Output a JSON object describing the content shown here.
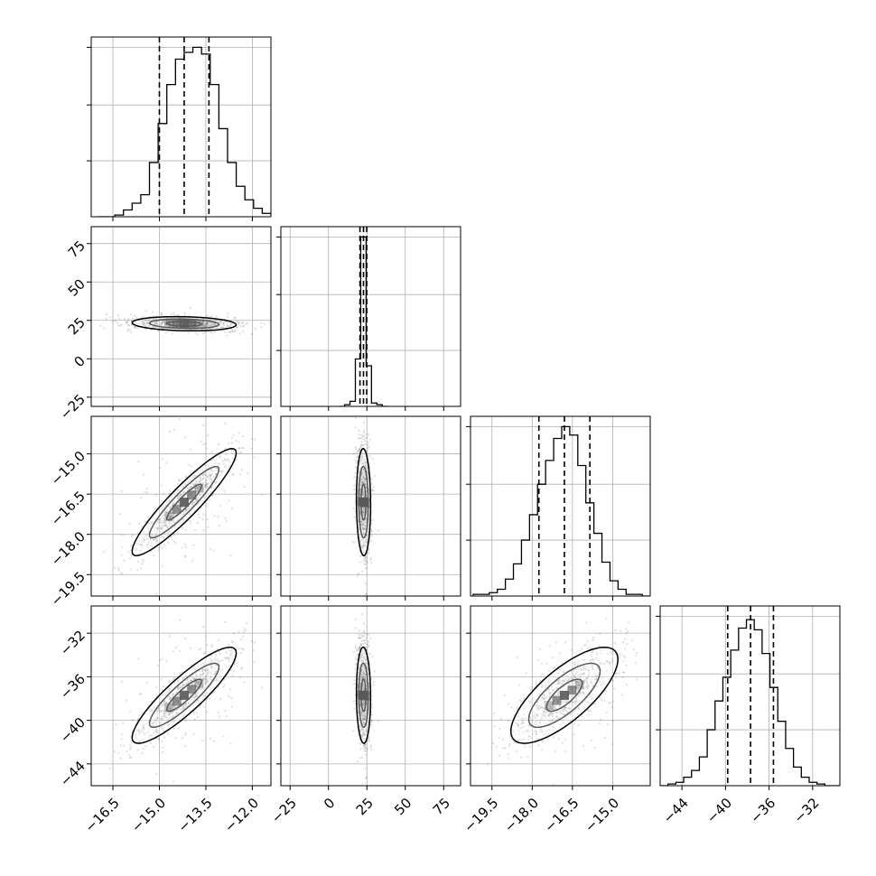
{
  "chart_data": {
    "type": "corner",
    "parameters": [
      {
        "index": 0,
        "range": [
          -17.2,
          -11.4
        ],
        "ticks": [
          -16.5,
          -15.0,
          -13.5,
          -12.0
        ],
        "tick_labels": [
          "−16.5",
          "−15.0",
          "−13.5",
          "−12.0"
        ],
        "quantiles": [
          -15.0,
          -14.2,
          -13.4
        ],
        "mean": -14.2,
        "sd": 0.8
      },
      {
        "index": 1,
        "range": [
          -31,
          86
        ],
        "ticks": [
          -25,
          0,
          25,
          50,
          75
        ],
        "tick_labels": [
          "−25",
          "0",
          "25",
          "50",
          "75"
        ],
        "quantiles": [
          20.5,
          22.8,
          24.9
        ],
        "mean": 22.8,
        "sd": 2.2
      },
      {
        "index": 2,
        "range": [
          -20.3,
          -13.6
        ],
        "ticks": [
          -19.5,
          -18.0,
          -16.5,
          -15.0
        ],
        "tick_labels": [
          "−19.5",
          "−18.0",
          "−16.5",
          "−15.0"
        ],
        "quantiles": [
          -17.75,
          -16.8,
          -15.85
        ],
        "mean": -16.8,
        "sd": 0.95
      },
      {
        "index": 3,
        "range": [
          -46.0,
          -29.5
        ],
        "ticks": [
          -44,
          -40,
          -36,
          -32
        ],
        "tick_labels": [
          "−44",
          "−40",
          "−36",
          "−32"
        ],
        "quantiles": [
          -39.8,
          -37.7,
          -35.6
        ],
        "mean": -37.7,
        "sd": 2.1
      }
    ],
    "histograms": {
      "0": {
        "edges_from": -17.0,
        "bin_width": 0.28,
        "counts": [
          0.0,
          0.0,
          0.01,
          0.04,
          0.08,
          0.13,
          0.32,
          0.55,
          0.78,
          0.93,
          0.97,
          1.0,
          0.96,
          0.78,
          0.52,
          0.32,
          0.18,
          0.1,
          0.05,
          0.02,
          0.01
        ]
      },
      "1": {
        "edges_from": 7,
        "bin_width": 3.5,
        "counts": [
          0.0,
          0.01,
          0.03,
          0.28,
          1.0,
          0.24,
          0.02,
          0.01,
          0.0
        ]
      },
      "2": {
        "edges_from": -20.2,
        "bin_width": 0.3,
        "counts": [
          0.01,
          0.01,
          0.02,
          0.04,
          0.1,
          0.19,
          0.33,
          0.48,
          0.66,
          0.8,
          0.93,
          1.0,
          0.95,
          0.77,
          0.55,
          0.37,
          0.2,
          0.09,
          0.04,
          0.01,
          0.01,
          0.0
        ]
      },
      "3": {
        "edges_from": -46.0,
        "bin_width": 0.72,
        "counts": [
          0.0,
          0.01,
          0.02,
          0.05,
          0.09,
          0.17,
          0.33,
          0.5,
          0.64,
          0.8,
          0.93,
          0.98,
          0.92,
          0.78,
          0.58,
          0.38,
          0.22,
          0.11,
          0.05,
          0.02,
          0.01,
          0.0,
          0.0
        ]
      }
    },
    "correlations": {
      "1-0": -0.15,
      "2-0": 0.92,
      "2-1": -0.05,
      "3-0": 0.88,
      "3-1": -0.05,
      "3-2": 0.75
    },
    "grid": true,
    "colors": {
      "contour": "#000000",
      "density": "#000000",
      "grid": "#b0b0b0",
      "spine": "#000000"
    }
  }
}
